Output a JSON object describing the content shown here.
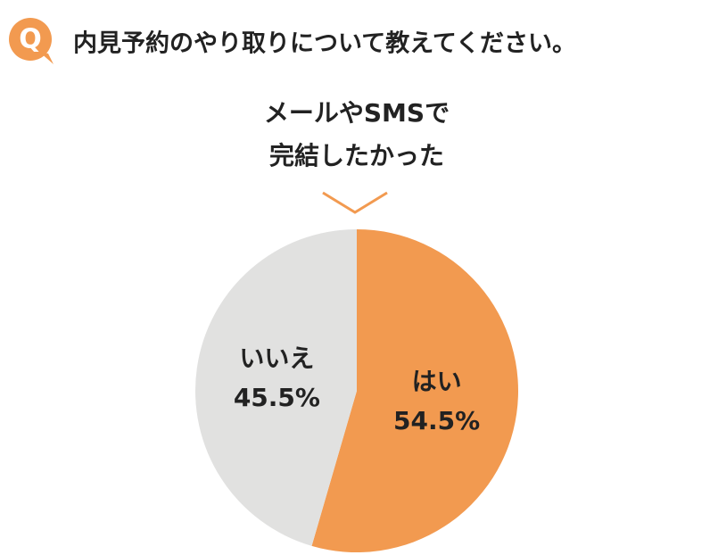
{
  "badge": "Q",
  "chart_data": {
    "type": "pie",
    "title": "内見予約のやり取りについて教えてください。",
    "subtitle": [
      "メールやSMSで",
      "完結したかった"
    ],
    "categories": [
      "はい",
      "いいえ"
    ],
    "values": [
      54.5,
      45.5
    ],
    "value_labels": [
      "54.5%",
      "45.5%"
    ],
    "colors": [
      "#f29a50",
      "#e1e1e0"
    ]
  }
}
